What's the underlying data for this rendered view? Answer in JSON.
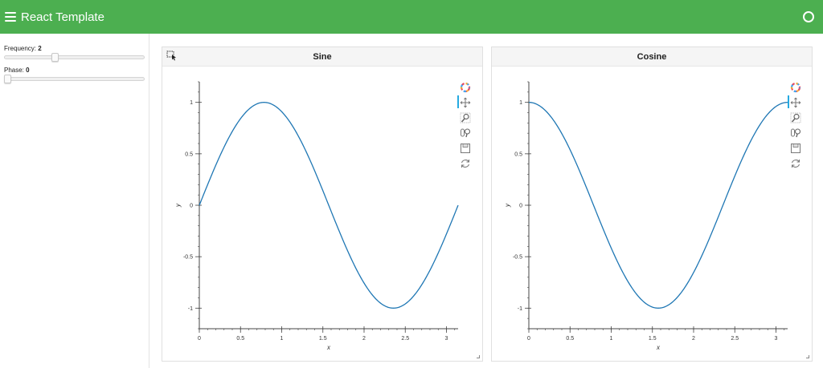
{
  "app": {
    "title": "React Template"
  },
  "sidebar": {
    "frequency": {
      "label": "Frequency:",
      "value": "2",
      "position": 0.2
    },
    "phase": {
      "label": "Phase:",
      "value": "0",
      "position": 0.0
    }
  },
  "toolbar_tools": [
    "bokeh-logo-icon",
    "pan-icon",
    "box-zoom-icon",
    "wheel-zoom-icon",
    "save-icon",
    "reset-icon"
  ],
  "accent_color": "#4caf50",
  "line_color": "#1f77b4",
  "chart_data": [
    {
      "type": "line",
      "title": "Sine",
      "xlabel": "x",
      "ylabel": "y",
      "xlim": [
        0,
        3.14159
      ],
      "ylim": [
        -1.2,
        1.2
      ],
      "xticks": [
        0,
        0.5,
        1,
        1.5,
        2,
        2.5,
        3
      ],
      "xtick_labels": [
        "0",
        "0.5",
        "1",
        "1.5",
        "2",
        "2.5",
        "3"
      ],
      "yticks": [
        -1,
        -0.5,
        0,
        0.5,
        1
      ],
      "ytick_labels": [
        "-1",
        "-0.5",
        "0",
        "0.5",
        "1"
      ],
      "function": "sin(2x)",
      "x": [
        0,
        0.314,
        0.628,
        0.785,
        0.942,
        1.257,
        1.571,
        1.885,
        2.199,
        2.356,
        2.513,
        2.827,
        3.142
      ],
      "y": [
        0,
        0.588,
        0.951,
        1.0,
        0.951,
        0.588,
        0,
        -0.588,
        -0.951,
        -1.0,
        -0.951,
        -0.588,
        0
      ]
    },
    {
      "type": "line",
      "title": "Cosine",
      "xlabel": "x",
      "ylabel": "y",
      "xlim": [
        0,
        3.14159
      ],
      "ylim": [
        -1.2,
        1.2
      ],
      "xticks": [
        0,
        0.5,
        1,
        1.5,
        2,
        2.5,
        3
      ],
      "xtick_labels": [
        "0",
        "0.5",
        "1",
        "1.5",
        "2",
        "2.5",
        "3"
      ],
      "yticks": [
        -1,
        -0.5,
        0,
        0.5,
        1
      ],
      "ytick_labels": [
        "-1",
        "-0.5",
        "0",
        "0.5",
        "1"
      ],
      "function": "cos(2x)",
      "x": [
        0,
        0.314,
        0.628,
        0.785,
        0.942,
        1.257,
        1.571,
        1.885,
        2.199,
        2.356,
        2.513,
        2.827,
        3.142
      ],
      "y": [
        1.0,
        0.809,
        0.309,
        0,
        -0.309,
        -0.809,
        -1.0,
        -0.809,
        -0.309,
        0,
        0.309,
        0.809,
        1.0
      ]
    }
  ]
}
